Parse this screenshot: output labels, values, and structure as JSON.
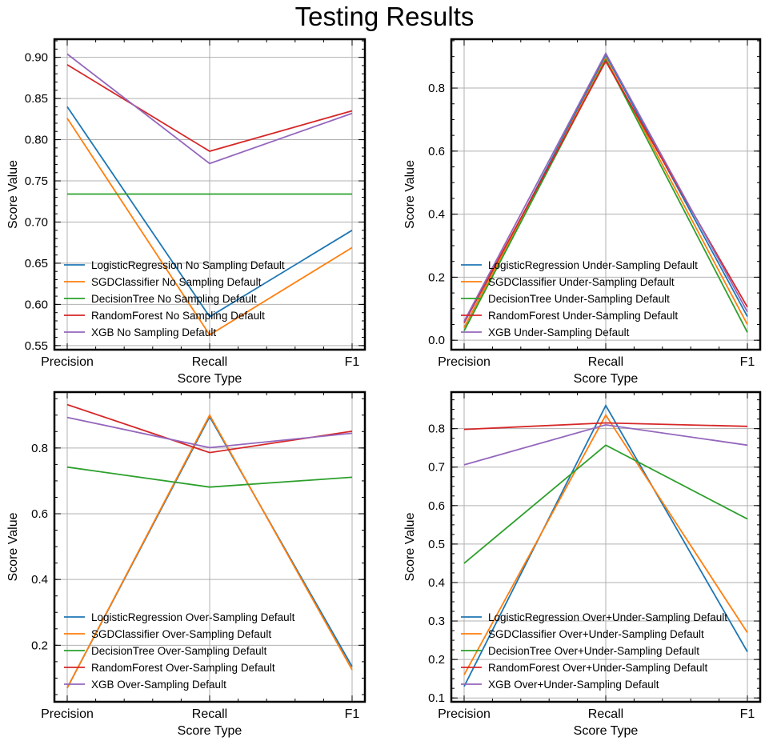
{
  "figure": {
    "title": "Testing Results"
  },
  "chart_data": [
    {
      "type": "line",
      "categories": [
        "Precision",
        "Recall",
        "F1"
      ],
      "xlabel": "Score Type",
      "ylabel": "Score Value",
      "ylim": [
        0.545,
        0.922
      ],
      "yticks": [
        "0.55",
        "0.60",
        "0.65",
        "0.70",
        "0.75",
        "0.80",
        "0.85",
        "0.90"
      ],
      "grid": true,
      "legend_position": "lower-left",
      "series": [
        {
          "name": "LogisticRegression No Sampling Default",
          "color": "#1f77b4",
          "values": [
            0.84,
            0.585,
            0.69
          ]
        },
        {
          "name": "SGDClassifier No Sampling Default",
          "color": "#ff7f0e",
          "values": [
            0.826,
            0.563,
            0.669
          ]
        },
        {
          "name": "DecisionTree No Sampling Default",
          "color": "#2ca02c",
          "values": [
            0.734,
            0.734,
            0.734
          ]
        },
        {
          "name": "RandomForest No Sampling Default",
          "color": "#d62728",
          "values": [
            0.891,
            0.786,
            0.835
          ]
        },
        {
          "name": "XGB No Sampling Default",
          "color": "#9467bd",
          "values": [
            0.904,
            0.771,
            0.832
          ]
        }
      ]
    },
    {
      "type": "line",
      "categories": [
        "Precision",
        "Recall",
        "F1"
      ],
      "xlabel": "Score Type",
      "ylabel": "Score Value",
      "ylim": [
        -0.03,
        0.955
      ],
      "yticks": [
        "0.0",
        "0.2",
        "0.4",
        "0.6",
        "0.8"
      ],
      "grid": true,
      "legend_position": "lower-left",
      "series": [
        {
          "name": "LogisticRegression Under-Sampling Default",
          "color": "#1f77b4",
          "values": [
            0.04,
            0.905,
            0.075
          ]
        },
        {
          "name": "SGDClassifier Under-Sampling Default",
          "color": "#ff7f0e",
          "values": [
            0.04,
            0.895,
            0.05
          ]
        },
        {
          "name": "DecisionTree Under-Sampling Default",
          "color": "#2ca02c",
          "values": [
            0.03,
            0.89,
            0.025
          ]
        },
        {
          "name": "RandomForest Under-Sampling Default",
          "color": "#d62728",
          "values": [
            0.055,
            0.885,
            0.105
          ]
        },
        {
          "name": "XGB Under-Sampling Default",
          "color": "#9467bd",
          "values": [
            0.06,
            0.91,
            0.09
          ]
        }
      ]
    },
    {
      "type": "line",
      "categories": [
        "Precision",
        "Recall",
        "F1"
      ],
      "xlabel": "Score Type",
      "ylabel": "Score Value",
      "ylim": [
        0.028,
        0.97
      ],
      "yticks": [
        "0.2",
        "0.4",
        "0.6",
        "0.8"
      ],
      "grid": true,
      "legend_position": "lower-left",
      "series": [
        {
          "name": "LogisticRegression Over-Sampling Default",
          "color": "#1f77b4",
          "values": [
            0.07,
            0.895,
            0.135
          ]
        },
        {
          "name": "SGDClassifier Over-Sampling Default",
          "color": "#ff7f0e",
          "values": [
            0.07,
            0.9,
            0.125
          ]
        },
        {
          "name": "DecisionTree Over-Sampling Default",
          "color": "#2ca02c",
          "values": [
            0.742,
            0.681,
            0.711
          ]
        },
        {
          "name": "RandomForest Over-Sampling Default",
          "color": "#d62728",
          "values": [
            0.932,
            0.786,
            0.851
          ]
        },
        {
          "name": "XGB Over-Sampling Default",
          "color": "#9467bd",
          "values": [
            0.893,
            0.801,
            0.845
          ]
        }
      ]
    },
    {
      "type": "line",
      "categories": [
        "Precision",
        "Recall",
        "F1"
      ],
      "xlabel": "Score Type",
      "ylabel": "Score Value",
      "ylim": [
        0.09,
        0.895
      ],
      "yticks": [
        "0.1",
        "0.2",
        "0.3",
        "0.4",
        "0.5",
        "0.6",
        "0.7",
        "0.8"
      ],
      "grid": true,
      "legend_position": "lower-left",
      "series": [
        {
          "name": "LogisticRegression Over+Under-Sampling Default",
          "color": "#1f77b4",
          "values": [
            0.13,
            0.86,
            0.22
          ]
        },
        {
          "name": "SGDClassifier Over+Under-Sampling Default",
          "color": "#ff7f0e",
          "values": [
            0.16,
            0.835,
            0.27
          ]
        },
        {
          "name": "DecisionTree Over+Under-Sampling Default",
          "color": "#2ca02c",
          "values": [
            0.45,
            0.757,
            0.565
          ]
        },
        {
          "name": "RandomForest Over+Under-Sampling Default",
          "color": "#d62728",
          "values": [
            0.798,
            0.815,
            0.806
          ]
        },
        {
          "name": "XGB Over+Under-Sampling Default",
          "color": "#9467bd",
          "values": [
            0.706,
            0.81,
            0.757
          ]
        }
      ]
    }
  ]
}
